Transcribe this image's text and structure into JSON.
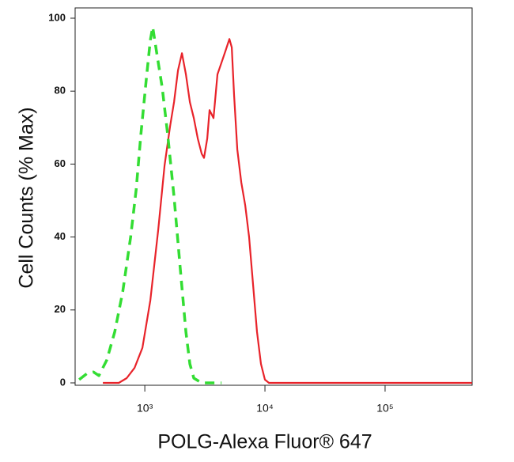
{
  "chart_data": {
    "type": "line",
    "xlabel": "POLG-Alexa Fluor® 647",
    "ylabel": "Cell Counts (% Max)",
    "xscale": "log",
    "xlim": [
      263,
      530000
    ],
    "xticks": [
      {
        "value": 1000,
        "label": "10³"
      },
      {
        "value": 10000,
        "label": "10⁴"
      },
      {
        "value": 100000,
        "label": "10⁵"
      }
    ],
    "ylim": [
      0,
      100
    ],
    "yticks": [
      0,
      20,
      40,
      60,
      80,
      100
    ],
    "series": [
      {
        "color": "#e8232a",
        "dash": "solid",
        "x": [
          448,
          607,
          706,
          821,
          955,
          1112,
          1294,
          1460,
          1624,
          1751,
          1888,
          2037,
          2199,
          2371,
          2558,
          2760,
          2977,
          3112,
          3311,
          3459,
          3733,
          4027,
          4346,
          4688,
          5058,
          5297,
          5534,
          5888,
          6351,
          6851,
          7379,
          7962,
          8590,
          9268,
          10000,
          10790,
          26800,
          529000
        ],
        "values": [
          0,
          0,
          1.3,
          4.1,
          9.6,
          22.6,
          42,
          59.6,
          70.4,
          77,
          85.7,
          90.4,
          84.6,
          77,
          72.6,
          67,
          62.8,
          61.7,
          67,
          74.8,
          72.6,
          84.6,
          87.8,
          91,
          94.3,
          92,
          79,
          64,
          55,
          48.7,
          40,
          27,
          14,
          5.2,
          0.9,
          0,
          0,
          0
        ]
      },
      {
        "color": "#33dd33",
        "dash": "dashed",
        "x": [
          284,
          331,
          373,
          415,
          483,
          562,
          655,
          762,
          847,
          927,
          1030,
          1112,
          1163,
          1236,
          1396,
          1552,
          1751,
          1977,
          2199,
          2371,
          2558,
          2977,
          4346
        ],
        "values": [
          0.9,
          2.6,
          3,
          2,
          6.3,
          14,
          25,
          40,
          53,
          68,
          83.5,
          94,
          97.6,
          92,
          81,
          68,
          51,
          31,
          14,
          5.2,
          1.3,
          0,
          0
        ]
      }
    ]
  }
}
